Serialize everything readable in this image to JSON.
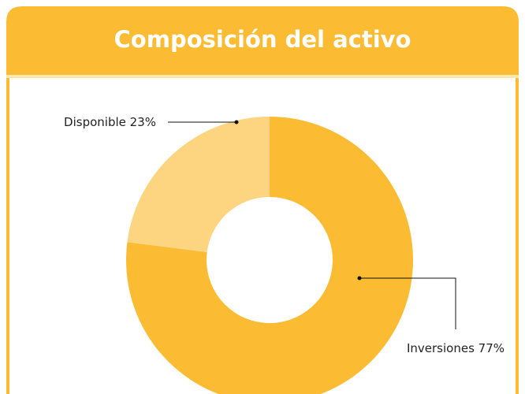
{
  "chart_data": {
    "type": "donut",
    "title": "Composición del activo",
    "categories": [
      "Disponible",
      "Inversiones"
    ],
    "values": [
      23,
      77
    ],
    "value_labels": [
      "23%",
      "77%"
    ],
    "colors": [
      "#fdd581",
      "#fbbc34"
    ]
  }
}
